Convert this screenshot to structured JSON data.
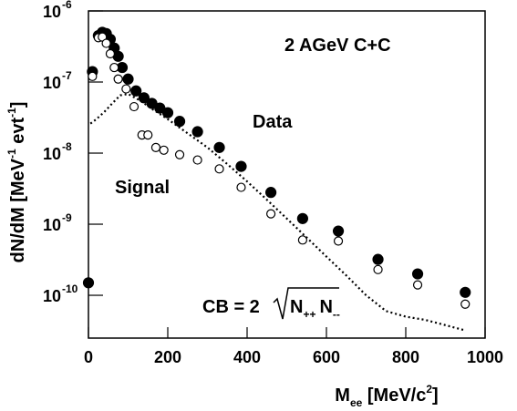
{
  "chart_data": {
    "type": "scatter",
    "ylabel": [
      "dN/dM  [MeV",
      "-1",
      " evt",
      "-1",
      "]"
    ],
    "xlabel": [
      "M",
      "ee",
      "  [MeV/c",
      "2",
      "]"
    ],
    "annotation": "2 AGeV  C+C",
    "formula": [
      "CB = 2",
      "N",
      "++",
      "N",
      "--"
    ],
    "log_y": true,
    "xlim": [
      0,
      1000
    ],
    "xticks": [
      0,
      200,
      400,
      600,
      800,
      1000
    ],
    "ylim": [
      2.5e-11,
      1e-06
    ],
    "yticks": [
      {
        "value": 1e-10,
        "label": "10",
        "exponent": "-10"
      },
      {
        "value": 1e-09,
        "label": "10",
        "exponent": "-9"
      },
      {
        "value": 1e-08,
        "label": "10",
        "exponent": "-8"
      },
      {
        "value": 1e-07,
        "label": "10",
        "exponent": "-7"
      },
      {
        "value": 1e-06,
        "label": "10",
        "exponent": "-6"
      }
    ],
    "series": [
      {
        "name": "Data",
        "marker": "filled",
        "color": "#000000",
        "x": [
          0,
          10,
          25,
          35,
          45,
          55,
          65,
          75,
          85,
          100,
          120,
          140,
          160,
          180,
          200,
          230,
          275,
          330,
          385,
          460,
          540,
          630,
          730,
          830,
          950
        ],
        "values": [
          1.5e-10,
          1.4e-07,
          4.5e-07,
          5e-07,
          4.8e-07,
          4e-07,
          3e-07,
          2.3e-07,
          1.6e-07,
          1.1e-07,
          7.5e-08,
          6e-08,
          5e-08,
          4.3e-08,
          3.7e-08,
          2.8e-08,
          2e-08,
          1.2e-08,
          6.5e-09,
          2.8e-09,
          1.2e-09,
          8e-10,
          3.2e-10,
          2e-10,
          1.1e-10
        ]
      },
      {
        "name": "Signal",
        "marker": "open",
        "color": "#000000",
        "x": [
          10,
          25,
          35,
          45,
          55,
          65,
          75,
          95,
          115,
          135,
          150,
          170,
          190,
          230,
          275,
          330,
          385,
          460,
          540,
          630,
          730,
          830,
          950
        ],
        "values": [
          1.2e-07,
          4.2e-07,
          4.3e-07,
          3.5e-07,
          2.5e-07,
          1.6e-07,
          1.1e-07,
          8e-08,
          4.5e-08,
          1.8e-08,
          1.8e-08,
          1.2e-08,
          1.1e-08,
          9.5e-09,
          8e-09,
          6e-09,
          3.3e-09,
          1.4e-09,
          6e-10,
          5.8e-10,
          2.3e-10,
          1.4e-10,
          7.5e-11
        ]
      },
      {
        "marker": "dotted-line",
        "color": "#000000",
        "x": [
          5,
          20,
          40,
          60,
          80,
          100,
          130,
          160,
          200,
          250,
          300,
          350,
          400,
          450,
          500,
          550,
          600,
          650,
          700,
          750,
          800,
          850,
          900,
          950
        ],
        "values": [
          2.6e-08,
          3e-08,
          3.8e-08,
          5e-08,
          6.5e-08,
          6.8e-08,
          5.5e-08,
          4.2e-08,
          3e-08,
          1.9e-08,
          1.2e-08,
          7e-09,
          4e-09,
          2.2e-09,
          1.2e-09,
          6.5e-10,
          3.5e-10,
          1.9e-10,
          1e-10,
          6e-11,
          5e-11,
          4.5e-11,
          3.8e-11,
          3.2e-11
        ]
      }
    ],
    "series_label_positions": "inside"
  }
}
